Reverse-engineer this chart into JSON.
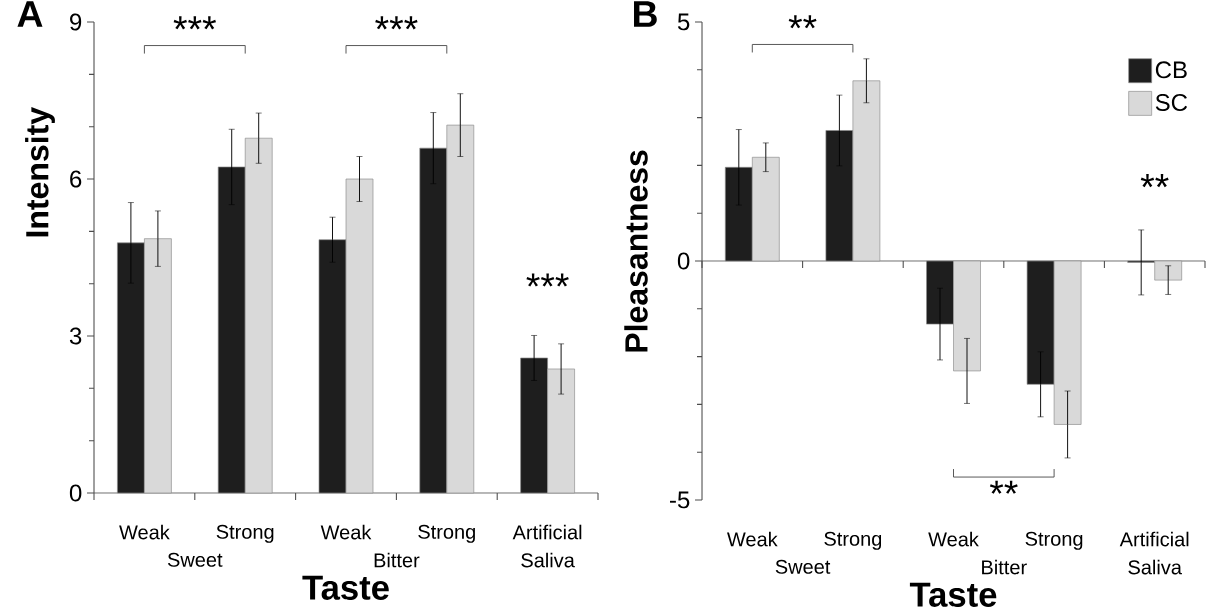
{
  "chart_data": [
    {
      "type": "bar",
      "title": "A",
      "xlabel": "Taste",
      "ylabel": "Intensity",
      "categories": [
        "Weak",
        "Strong",
        "Weak",
        "Strong",
        "Artificial Saliva"
      ],
      "series": [
        {
          "color": "#1e1e1e",
          "values": [
            4.78,
            6.23,
            4.84,
            6.59,
            2.58
          ],
          "errors": [
            0.77,
            0.72,
            0.43,
            0.68,
            0.43
          ]
        },
        {
          "color": "#d9d9d9",
          "values": [
            4.86,
            6.78,
            6.0,
            7.03,
            2.37
          ],
          "errors": [
            0.53,
            0.48,
            0.43,
            0.6,
            0.48
          ]
        }
      ],
      "ylim": [
        0,
        9
      ],
      "yticks": [
        0,
        3,
        6,
        9
      ],
      "annotations": [
        "***",
        "***",
        "***",
        "Sweet",
        "Bitter"
      ]
    },
    {
      "type": "bar",
      "title": "B",
      "xlabel": "Taste",
      "ylabel": "Pleasantness",
      "categories": [
        "Weak",
        "Strong",
        "Weak",
        "Strong",
        "Artificial Saliva"
      ],
      "series": [
        {
          "name": "CB",
          "color": "#1e1e1e",
          "values": [
            1.96,
            2.73,
            -1.32,
            -2.58,
            -0.03
          ],
          "errors": [
            0.79,
            0.74,
            0.75,
            0.68,
            0.68
          ]
        },
        {
          "name": "SC",
          "color": "#d9d9d9",
          "values": [
            2.17,
            3.77,
            -2.3,
            -3.42,
            -0.4
          ],
          "errors": [
            0.3,
            0.46,
            0.68,
            0.7,
            0.3
          ]
        }
      ],
      "ylim": [
        -5,
        5
      ],
      "yticks": [
        -5,
        0,
        5
      ],
      "legend": "top right",
      "annotations": [
        "**",
        "**",
        "**",
        "Sweet",
        "Bitter"
      ]
    }
  ]
}
